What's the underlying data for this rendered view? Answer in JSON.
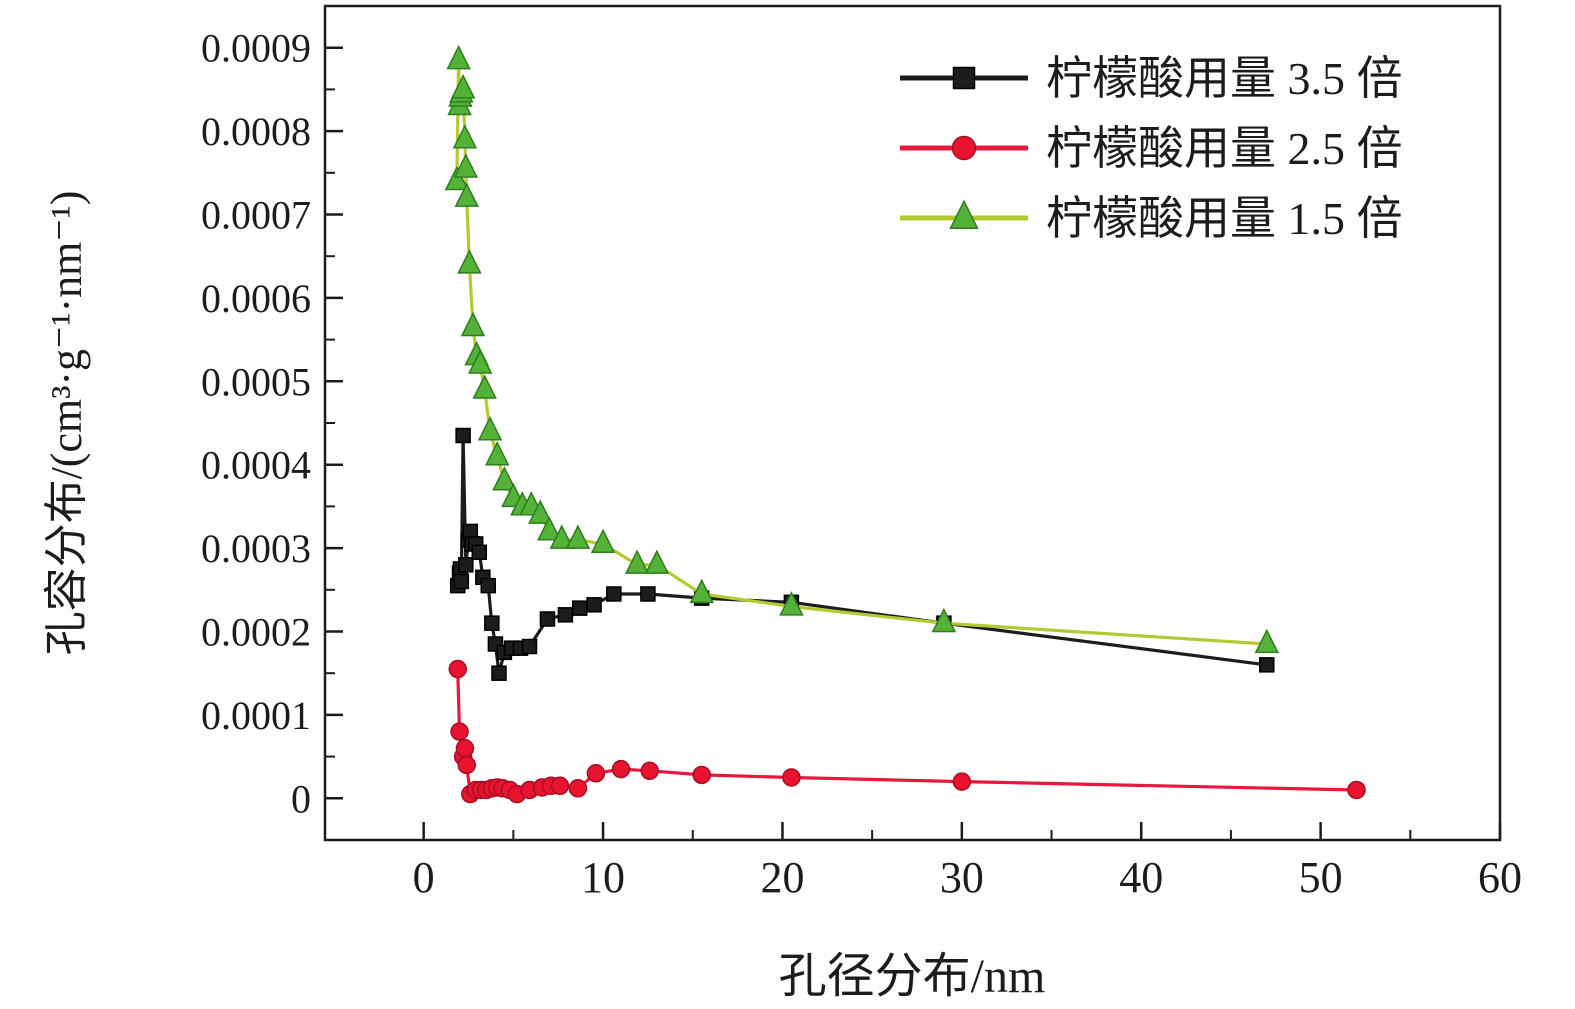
{
  "figure": {
    "background": "#ffffff",
    "axis_color": "#1c1c1c"
  },
  "chart_data": {
    "type": "line",
    "title": "",
    "xlabel": "孔径分布/nm",
    "ylabel": "孔容分布/(cm³·g⁻¹·nm⁻¹)",
    "xlim": [
      -5.5,
      60
    ],
    "ylim": [
      -5e-05,
      0.00095
    ],
    "x_ticks": [
      0,
      10,
      20,
      30,
      40,
      50,
      60
    ],
    "x_minor_ticks": [
      5,
      15,
      25,
      35,
      45,
      55
    ],
    "y_ticks": [
      0,
      0.0001,
      0.0002,
      0.0003,
      0.0004,
      0.0005,
      0.0006,
      0.0007,
      0.0008,
      0.0009
    ],
    "y_tick_labels": [
      "0",
      "0.0001",
      "0.0002",
      "0.0003",
      "0.0004",
      "0.0005",
      "0.0006",
      "0.0007",
      "0.0008",
      "0.0009"
    ],
    "y_minor_ticks": [
      5e-05,
      0.00015,
      0.00025,
      0.00035,
      0.00045,
      0.00055,
      0.00065,
      0.00075,
      0.00085
    ],
    "grid": false,
    "legend_position": "top-right",
    "series": [
      {
        "name": "柠檬酸用量 3.5 倍",
        "marker": "square",
        "line_color": "#1c1c1c",
        "marker_fill": "#1c1c1c",
        "marker_stroke": "#000000",
        "points": [
          [
            1.9,
            0.000255
          ],
          [
            2.0,
            0.00027
          ],
          [
            2.05,
            0.000275
          ],
          [
            2.1,
            0.00026
          ],
          [
            2.2,
            0.000435
          ],
          [
            2.35,
            0.00028
          ],
          [
            2.5,
            0.00031
          ],
          [
            2.6,
            0.00032
          ],
          [
            2.7,
            0.000305
          ],
          [
            2.9,
            0.000305
          ],
          [
            3.1,
            0.000295
          ],
          [
            3.3,
            0.000265
          ],
          [
            3.6,
            0.000255
          ],
          [
            3.8,
            0.00021
          ],
          [
            4.0,
            0.000185
          ],
          [
            4.2,
            0.00015
          ],
          [
            4.5,
            0.000175
          ],
          [
            4.9,
            0.00018
          ],
          [
            5.4,
            0.00018
          ],
          [
            5.9,
            0.000182
          ],
          [
            6.9,
            0.000215
          ],
          [
            7.9,
            0.00022
          ],
          [
            8.7,
            0.000228
          ],
          [
            9.5,
            0.000232
          ],
          [
            10.6,
            0.000245
          ],
          [
            12.5,
            0.000245
          ],
          [
            15.5,
            0.00024
          ],
          [
            20.5,
            0.000235
          ],
          [
            29,
            0.00021
          ],
          [
            47,
            0.00016
          ]
        ]
      },
      {
        "name": "柠檬酸用量 2.5 倍",
        "marker": "circle",
        "line_color": "#e8173d",
        "marker_fill": "#e8132f",
        "marker_stroke": "#a50f24",
        "points": [
          [
            1.9,
            0.000155
          ],
          [
            2.0,
            8e-05
          ],
          [
            2.2,
            5e-05
          ],
          [
            2.3,
            6e-05
          ],
          [
            2.4,
            4e-05
          ],
          [
            2.6,
            5e-06
          ],
          [
            2.9,
            1e-05
          ],
          [
            3.2,
            1e-05
          ],
          [
            3.5,
            1e-05
          ],
          [
            3.8,
            1.2e-05
          ],
          [
            4.1,
            1.3e-05
          ],
          [
            4.4,
            1.2e-05
          ],
          [
            4.8,
            1e-05
          ],
          [
            5.2,
            5e-06
          ],
          [
            5.9,
            1e-05
          ],
          [
            6.6,
            1.3e-05
          ],
          [
            7.1,
            1.5e-05
          ],
          [
            7.6,
            1.5e-05
          ],
          [
            8.6,
            1.2e-05
          ],
          [
            9.6,
            3e-05
          ],
          [
            11,
            3.5e-05
          ],
          [
            12.6,
            3.3e-05
          ],
          [
            15.5,
            2.8e-05
          ],
          [
            20.5,
            2.5e-05
          ],
          [
            30,
            2e-05
          ],
          [
            52,
            1e-05
          ]
        ]
      },
      {
        "name": "柠檬酸用量 1.5 倍",
        "marker": "triangle",
        "line_color": "#b5c932",
        "marker_fill": "#53b237",
        "marker_stroke": "#2f7d1e",
        "points": [
          [
            1.85,
            0.00074
          ],
          [
            1.95,
            0.000885
          ],
          [
            2.0,
            0.00083
          ],
          [
            2.05,
            0.00084
          ],
          [
            2.1,
            0.000845
          ],
          [
            2.2,
            0.00085
          ],
          [
            2.3,
            0.00079
          ],
          [
            2.35,
            0.000755
          ],
          [
            2.4,
            0.00072
          ],
          [
            2.55,
            0.00064
          ],
          [
            2.75,
            0.000565
          ],
          [
            2.95,
            0.00053
          ],
          [
            3.15,
            0.00052
          ],
          [
            3.4,
            0.00049
          ],
          [
            3.7,
            0.00044
          ],
          [
            4.1,
            0.00041
          ],
          [
            4.5,
            0.00038
          ],
          [
            5.0,
            0.00036
          ],
          [
            5.5,
            0.00035
          ],
          [
            6.0,
            0.00035
          ],
          [
            6.5,
            0.00034
          ],
          [
            7.0,
            0.00032
          ],
          [
            7.7,
            0.00031
          ],
          [
            8.6,
            0.00031
          ],
          [
            10,
            0.000305
          ],
          [
            11.9,
            0.00028
          ],
          [
            13,
            0.00028
          ],
          [
            15.5,
            0.000245
          ],
          [
            20.5,
            0.00023
          ],
          [
            29,
            0.00021
          ],
          [
            47,
            0.000185
          ]
        ]
      }
    ]
  }
}
